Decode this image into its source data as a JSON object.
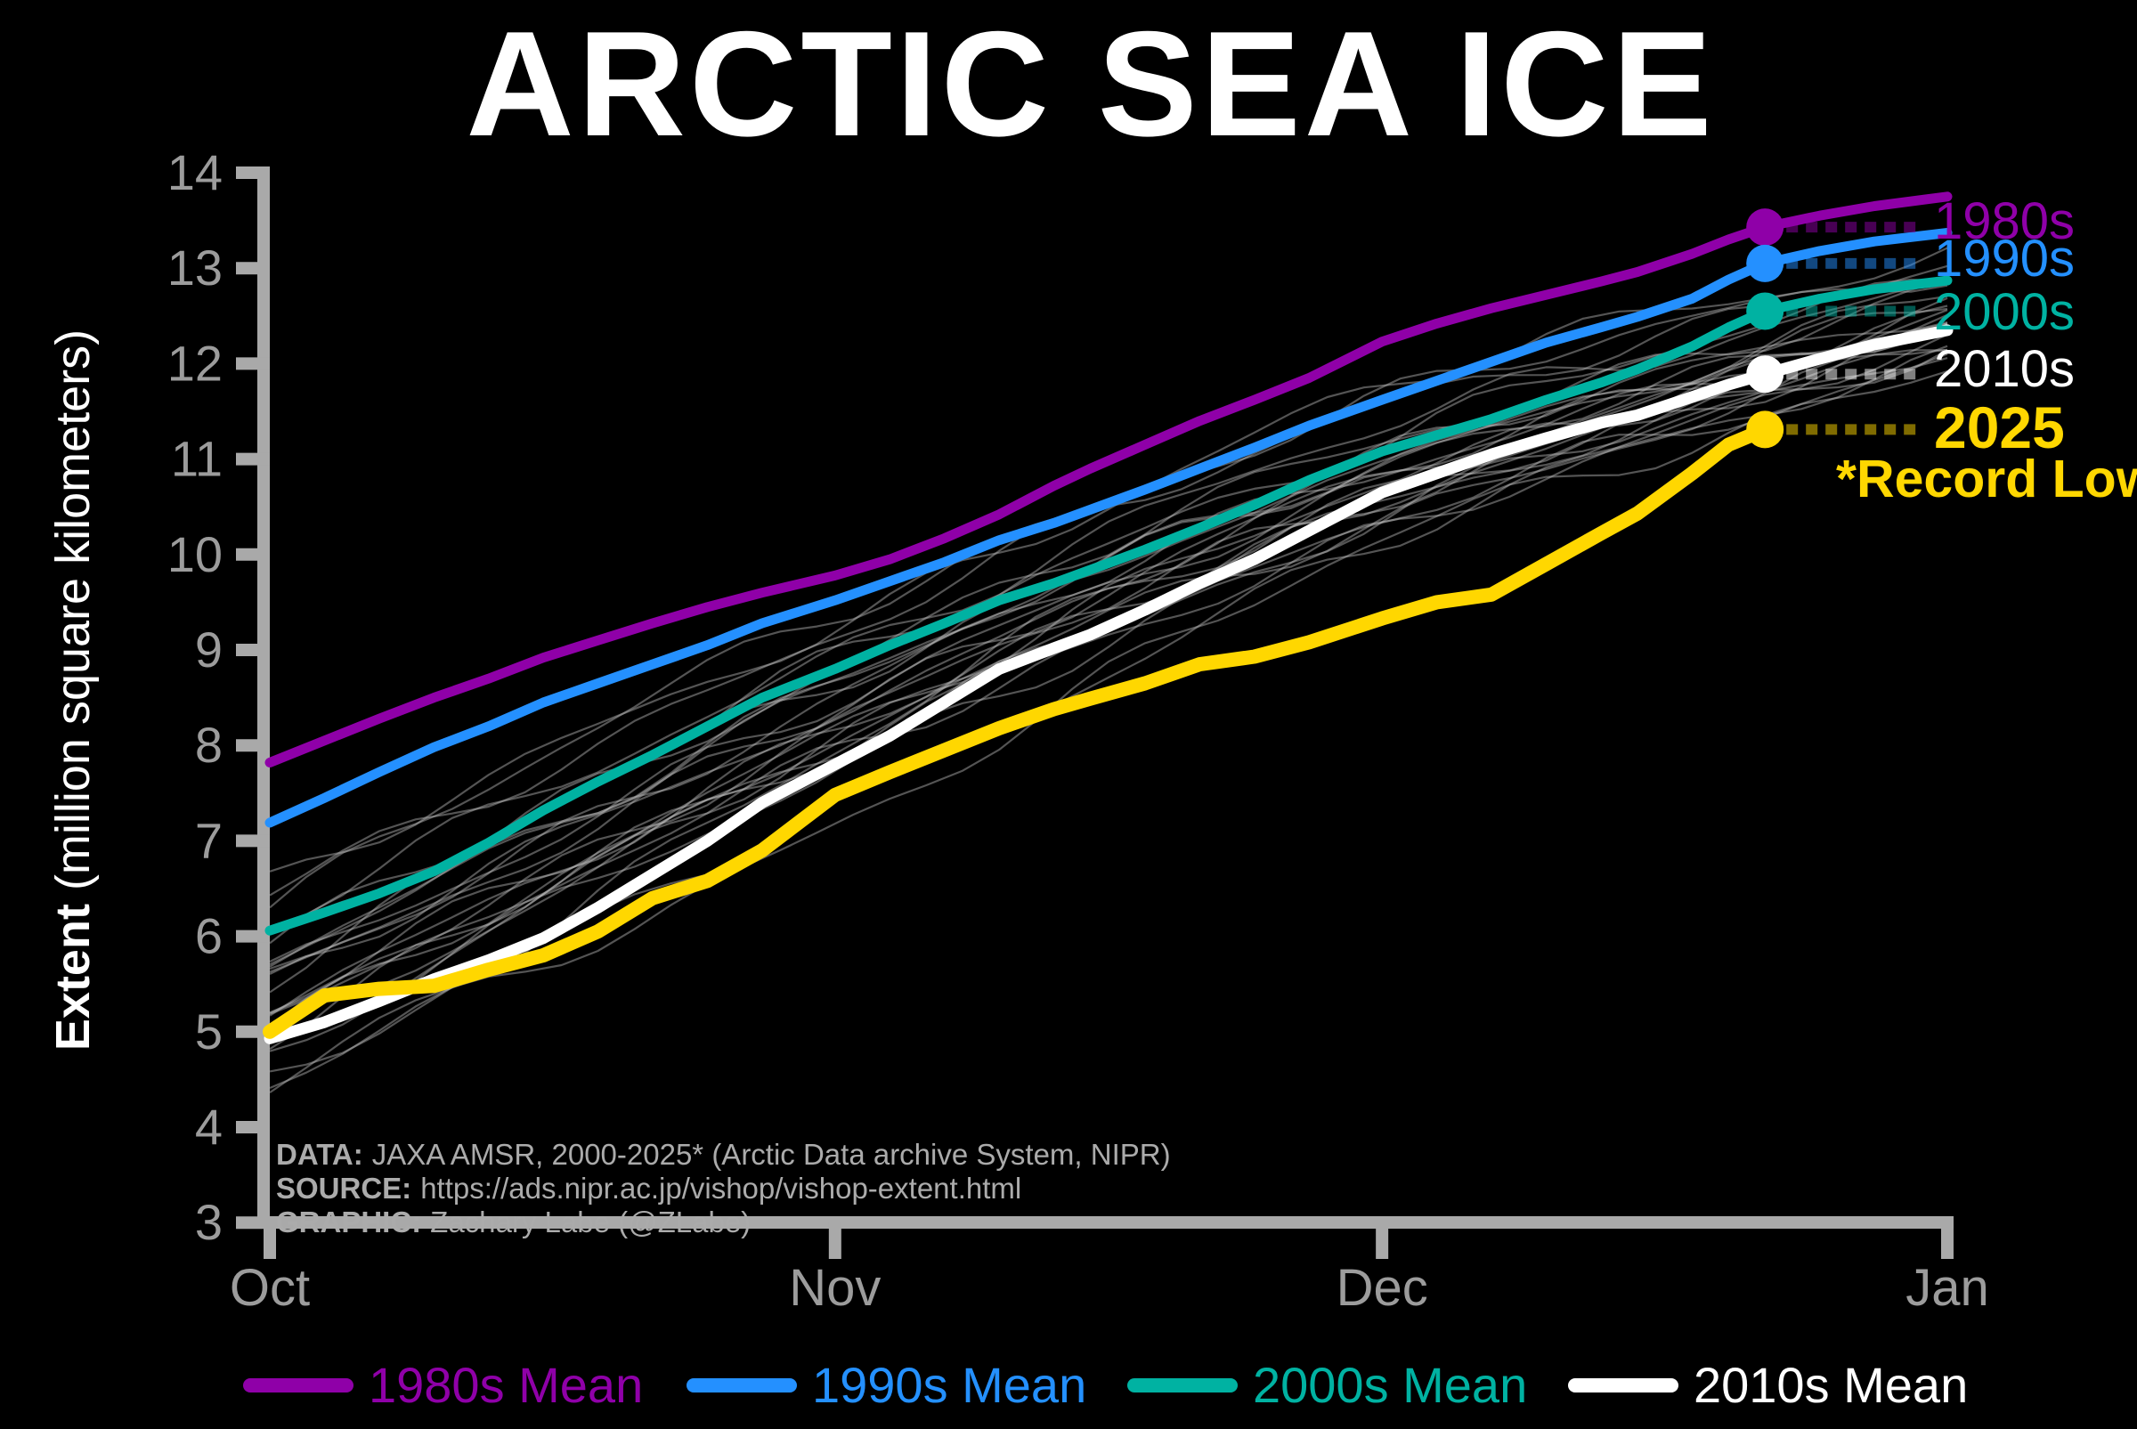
{
  "title": "ARCTIC SEA ICE",
  "axes": {
    "ylabel_bold": "Extent",
    "ylabel_rest": " (million square kilometers)",
    "y_ticks": [
      14,
      13,
      12,
      11,
      10,
      9,
      8,
      7,
      6,
      5,
      4,
      3
    ],
    "x_ticks": [
      {
        "label": "Oct",
        "day": 0
      },
      {
        "label": "Nov",
        "day": 31
      },
      {
        "label": "Dec",
        "day": 61
      },
      {
        "label": "Jan",
        "day": 92
      }
    ],
    "axis_color": "#a9a9a9",
    "tick_label_color": "#9c9c9c"
  },
  "annotations": {
    "color": "#ababab",
    "data_prefix": "DATA:",
    "data_text": "JAXA AMSR, 2000-2025* (Arctic Data archive System, NIPR)",
    "source_prefix": "SOURCE:",
    "source_text": "https://ads.nipr.ac.jp/vishop/vishop-extent.html",
    "graphic_prefix": "GRAPHIC:",
    "graphic_text": "Zachary Labe (@ZLabe)"
  },
  "chart_data": {
    "type": "line",
    "title": "ARCTIC SEA ICE",
    "xlabel": "",
    "ylabel": "Extent (million square kilometers)",
    "x_unit": "days since Oct 1",
    "xlim_days": [
      0,
      92
    ],
    "ylim": [
      3,
      14
    ],
    "grid": false,
    "legend_position": "bottom",
    "record_low_label": "*Record Low",
    "days": [
      0,
      3,
      6,
      9,
      12,
      15,
      18,
      21,
      24,
      27,
      31,
      34,
      37,
      40,
      43,
      45,
      48,
      51,
      54,
      57,
      61,
      64,
      67,
      70,
      73,
      75,
      78,
      80,
      82,
      85,
      88,
      92
    ],
    "series": [
      {
        "name": "1980s Mean",
        "right_label": "1980s",
        "legend_label": "1980s Mean",
        "color": "#8f00a8",
        "width": 11,
        "marker_day": 82,
        "leader": true,
        "values": [
          7.82,
          8.05,
          8.28,
          8.5,
          8.7,
          8.92,
          9.1,
          9.28,
          9.45,
          9.6,
          9.78,
          9.95,
          10.17,
          10.42,
          10.72,
          10.9,
          11.15,
          11.4,
          11.62,
          11.85,
          12.23,
          12.42,
          12.58,
          12.72,
          12.86,
          12.96,
          13.15,
          13.3,
          13.43,
          13.55,
          13.65,
          13.75
        ]
      },
      {
        "name": "1990s Mean",
        "right_label": "1990s",
        "legend_label": "1990s Mean",
        "color": "#2490ff",
        "width": 11,
        "marker_day": 82,
        "leader": true,
        "values": [
          7.19,
          7.45,
          7.72,
          7.98,
          8.2,
          8.45,
          8.65,
          8.85,
          9.05,
          9.28,
          9.52,
          9.72,
          9.92,
          10.15,
          10.33,
          10.47,
          10.68,
          10.9,
          11.12,
          11.35,
          11.62,
          11.82,
          12.02,
          12.22,
          12.38,
          12.49,
          12.68,
          12.88,
          13.05,
          13.18,
          13.28,
          13.37
        ]
      },
      {
        "name": "2000s Mean",
        "right_label": "2000s",
        "legend_label": "2000s Mean",
        "color": "#00b2a2",
        "width": 11,
        "marker_day": 82,
        "leader": true,
        "values": [
          6.06,
          6.25,
          6.45,
          6.68,
          6.98,
          7.32,
          7.62,
          7.9,
          8.2,
          8.5,
          8.8,
          9.05,
          9.28,
          9.52,
          9.7,
          9.84,
          10.05,
          10.28,
          10.52,
          10.78,
          11.08,
          11.25,
          11.42,
          11.62,
          11.8,
          11.94,
          12.18,
          12.38,
          12.55,
          12.68,
          12.78,
          12.87
        ]
      },
      {
        "name": "2010s Mean",
        "right_label": "2010s",
        "legend_label": "2010s Mean",
        "color": "#ffffff",
        "width": 13,
        "marker_day": 82,
        "leader": true,
        "values": [
          4.93,
          5.1,
          5.32,
          5.55,
          5.75,
          5.98,
          6.3,
          6.65,
          7.0,
          7.4,
          7.8,
          8.1,
          8.45,
          8.8,
          9.02,
          9.16,
          9.42,
          9.7,
          9.95,
          10.25,
          10.65,
          10.85,
          11.05,
          11.22,
          11.38,
          11.46,
          11.65,
          11.78,
          11.89,
          12.05,
          12.2,
          12.35
        ]
      },
      {
        "name": "2025",
        "right_label": "2025",
        "legend_label": null,
        "color": "#ffd700",
        "width": 16,
        "marker_day": 82,
        "leader": true,
        "days": [
          0,
          3,
          6,
          9,
          12,
          15,
          18,
          21,
          24,
          27,
          31,
          34,
          37,
          40,
          43,
          45,
          48,
          51,
          54,
          57,
          61,
          64,
          67,
          70,
          73,
          75,
          78,
          80,
          82
        ],
        "values": [
          5.0,
          5.38,
          5.45,
          5.48,
          5.65,
          5.8,
          6.05,
          6.4,
          6.58,
          6.9,
          7.48,
          7.72,
          7.95,
          8.18,
          8.38,
          8.49,
          8.65,
          8.85,
          8.93,
          9.08,
          9.33,
          9.5,
          9.58,
          9.9,
          10.22,
          10.43,
          10.85,
          11.15,
          11.31
        ]
      }
    ],
    "individual_years": {
      "description": "Individual years 2000-2024 (thin gray lines)",
      "color": "#c8c8c8",
      "opacity": 0.42,
      "width": 2.2,
      "control_days": [
        0,
        31,
        61,
        92
      ],
      "lines": [
        {
          "year": 2000,
          "values": [
            6.3,
            9.4,
            11.6,
            13.0
          ]
        },
        {
          "year": 2001,
          "values": [
            6.5,
            9.3,
            11.7,
            13.2
          ]
        },
        {
          "year": 2002,
          "values": [
            6.1,
            9.0,
            11.3,
            12.9
          ]
        },
        {
          "year": 2003,
          "values": [
            6.4,
            9.2,
            11.5,
            13.1
          ]
        },
        {
          "year": 2004,
          "values": [
            6.0,
            8.8,
            11.2,
            12.8
          ]
        },
        {
          "year": 2005,
          "values": [
            5.8,
            8.6,
            11.0,
            12.7
          ]
        },
        {
          "year": 2006,
          "values": [
            5.6,
            8.3,
            10.7,
            12.4
          ]
        },
        {
          "year": 2007,
          "values": [
            4.8,
            8.0,
            10.6,
            12.5
          ]
        },
        {
          "year": 2008,
          "values": [
            5.6,
            8.9,
            11.2,
            12.9
          ]
        },
        {
          "year": 2009,
          "values": [
            5.9,
            8.7,
            11.0,
            12.6
          ]
        },
        {
          "year": 2010,
          "values": [
            5.5,
            8.4,
            10.8,
            12.5
          ]
        },
        {
          "year": 2011,
          "values": [
            5.2,
            8.2,
            10.7,
            12.4
          ]
        },
        {
          "year": 2012,
          "values": [
            4.3,
            8.0,
            10.9,
            12.6
          ]
        },
        {
          "year": 2013,
          "values": [
            5.6,
            8.5,
            10.9,
            12.5
          ]
        },
        {
          "year": 2014,
          "values": [
            5.8,
            8.6,
            11.0,
            12.6
          ]
        },
        {
          "year": 2015,
          "values": [
            5.7,
            8.4,
            10.8,
            12.4
          ]
        },
        {
          "year": 2016,
          "values": [
            4.6,
            7.3,
            10.2,
            12.0
          ]
        },
        {
          "year": 2017,
          "values": [
            5.0,
            7.9,
            10.4,
            12.2
          ]
        },
        {
          "year": 2018,
          "values": [
            5.0,
            8.0,
            10.5,
            12.2
          ]
        },
        {
          "year": 2019,
          "values": [
            4.8,
            7.8,
            10.3,
            12.1
          ]
        },
        {
          "year": 2020,
          "values": [
            4.4,
            7.2,
            10.1,
            12.0
          ]
        },
        {
          "year": 2021,
          "values": [
            5.1,
            8.1,
            10.5,
            12.3
          ]
        },
        {
          "year": 2022,
          "values": [
            5.2,
            8.2,
            10.6,
            12.3
          ]
        },
        {
          "year": 2023,
          "values": [
            5.3,
            8.1,
            10.4,
            12.2
          ]
        },
        {
          "year": 2024,
          "values": [
            5.0,
            7.9,
            10.3,
            12.1
          ]
        }
      ]
    }
  }
}
